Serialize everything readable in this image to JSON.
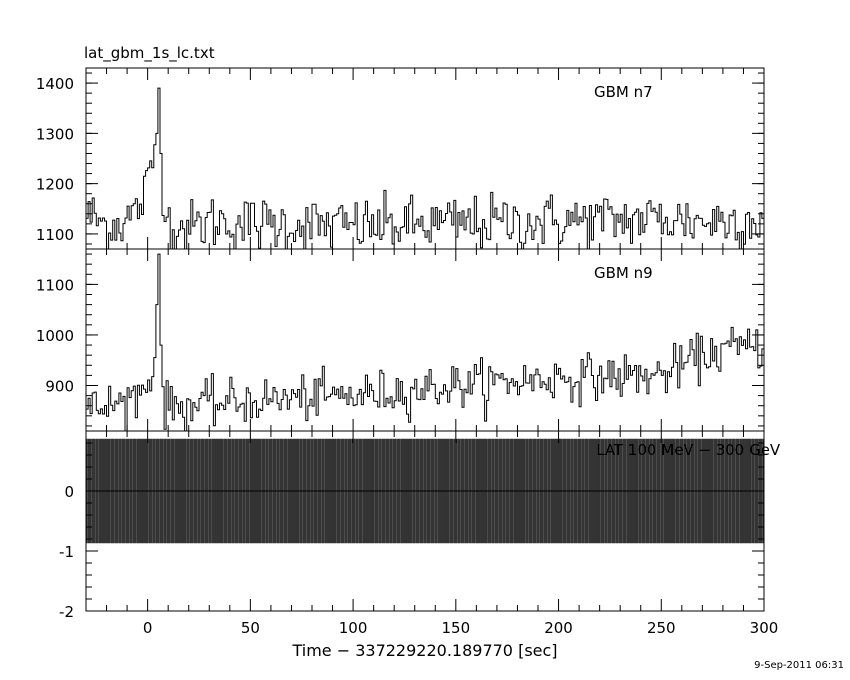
{
  "title": "lat_gbm_1s_lc.txt",
  "timestamp": "9-Sep-2011 06:31",
  "chart_data": [
    {
      "type": "line",
      "panel": "top",
      "label": "GBM n7",
      "xlim": [
        -30,
        300
      ],
      "ylim": [
        1070,
        1430
      ],
      "yticks": [
        1100,
        1200,
        1300,
        1400
      ],
      "peak": {
        "x": 5,
        "y": 1390
      },
      "baseline": 1120,
      "series": [
        {
          "x": [
            -30,
            -20,
            -10,
            -5,
            0,
            2,
            4,
            5,
            6,
            8,
            10,
            20,
            30,
            50,
            100,
            150,
            200,
            250,
            270,
            300
          ],
          "y": [
            1140,
            1115,
            1130,
            1150,
            1200,
            1240,
            1300,
            1390,
            1260,
            1160,
            1120,
            1110,
            1125,
            1120,
            1115,
            1120,
            1125,
            1130,
            1125,
            1130
          ]
        }
      ]
    },
    {
      "type": "line",
      "panel": "middle",
      "label": "GBM n9",
      "xlim": [
        -30,
        300
      ],
      "ylim": [
        810,
        1170
      ],
      "yticks": [
        900,
        1000,
        1100
      ],
      "peak": {
        "x": 5,
        "y": 1160
      },
      "series": [
        {
          "x": [
            -30,
            -10,
            0,
            3,
            5,
            6,
            8,
            20,
            50,
            100,
            150,
            200,
            250,
            270,
            280,
            300
          ],
          "y": [
            850,
            870,
            900,
            960,
            1160,
            980,
            860,
            860,
            870,
            880,
            900,
            915,
            920,
            960,
            970,
            980
          ]
        }
      ]
    },
    {
      "type": "line",
      "panel": "bottom",
      "label": "LAT 100 MeV − 300 GeV",
      "xlim": [
        -30,
        300
      ],
      "ylim": [
        -2,
        1
      ],
      "yticks": [
        -2,
        -1,
        0
      ],
      "xticks": [
        0,
        50,
        100,
        150,
        200,
        250,
        300
      ],
      "values_range": [
        -0.87,
        0.87
      ],
      "xlabel": "Time − 337229220.189770 [sec]"
    }
  ]
}
